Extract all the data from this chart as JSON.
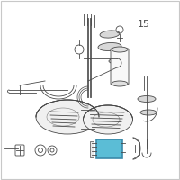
{
  "background_color": "#ffffff",
  "border_color": "#c8c8c8",
  "line_color": "#4a4a4a",
  "highlight_color": "#5bbdd6",
  "highlight_edge": "#3a8aaa",
  "label_15_text": "15",
  "gray_fill": "#c8c8c8",
  "light_gray": "#d8d8d8",
  "tank_fill": "#eeeeee"
}
